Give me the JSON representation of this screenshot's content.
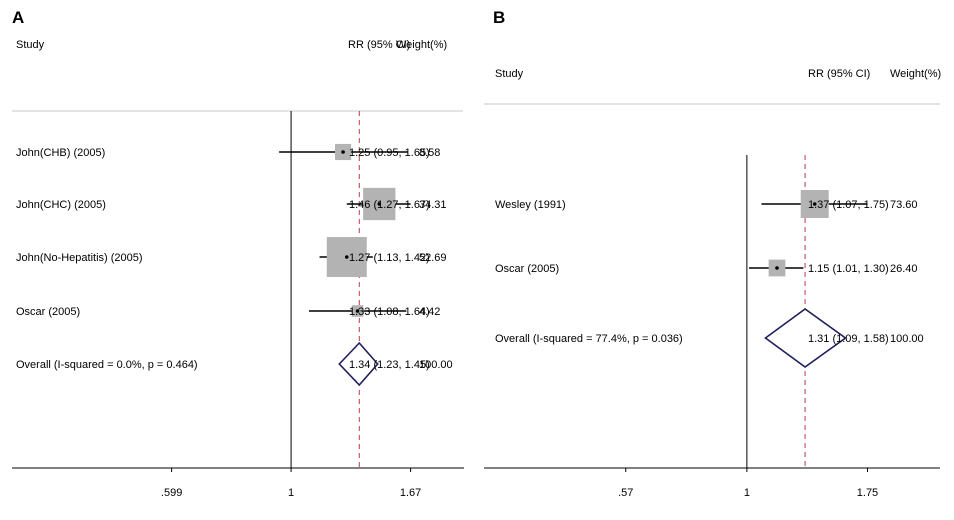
{
  "colors": {
    "box": "#b3b3b3",
    "diamond": "#1f1f5c",
    "ref_line": "#c0394b",
    "axis": "#000000",
    "separator": "#c8c8c8"
  },
  "chart_data": [
    {
      "type": "forest",
      "panel_label": "A",
      "headers": {
        "study": "Study",
        "rr": "RR (95% CI)",
        "weight": "Weight(%)"
      },
      "x_ticks": [
        {
          "value": 0.599,
          "label": ".599"
        },
        {
          "value": 1,
          "label": "1"
        },
        {
          "value": 1.67,
          "label": "1.67"
        }
      ],
      "xlim": [
        0.48,
        2.1
      ],
      "scale": "log",
      "null_line": 1,
      "overall_line": 1.34,
      "studies": [
        {
          "name": "John(CHB) (2005)",
          "rr": 1.25,
          "lo": 0.95,
          "hi": 1.65,
          "rr_text": "1.25 (0.95, 1.65)",
          "weight": 8.58,
          "weight_text": "8.58"
        },
        {
          "name": "John(CHC) (2005)",
          "rr": 1.46,
          "lo": 1.27,
          "hi": 1.67,
          "rr_text": "1.46 (1.27, 1.67)",
          "weight": 34.31,
          "weight_text": "34.31"
        },
        {
          "name": "John(No-Hepatitis) (2005)",
          "rr": 1.27,
          "lo": 1.13,
          "hi": 1.42,
          "rr_text": "1.27 (1.13, 1.42)",
          "weight": 52.69,
          "weight_text": "52.69"
        },
        {
          "name": "Oscar (2005)",
          "rr": 1.33,
          "lo": 1.08,
          "hi": 1.64,
          "rr_text": "1.33 (1.08, 1.64)",
          "weight": 4.42,
          "weight_text": "4.42"
        }
      ],
      "overall": {
        "name": "Overall  (I-squared = 0.0%, p = 0.464)",
        "rr": 1.34,
        "lo": 1.23,
        "hi": 1.45,
        "rr_text": "1.34 (1.23, 1.45)",
        "weight_text": "100.00"
      }
    },
    {
      "type": "forest",
      "panel_label": "B",
      "headers": {
        "study": "Study",
        "rr": "RR (95% CI)",
        "weight": "Weight(%)"
      },
      "x_ticks": [
        {
          "value": 0.57,
          "label": ".57"
        },
        {
          "value": 1,
          "label": "1"
        },
        {
          "value": 1.75,
          "label": "1.75"
        }
      ],
      "xlim": [
        0.43,
        2.45
      ],
      "scale": "log",
      "null_line": 1,
      "overall_line": 1.31,
      "studies": [
        {
          "name": "Wesley (1991)",
          "rr": 1.37,
          "lo": 1.07,
          "hi": 1.75,
          "rr_text": "1.37 (1.07, 1.75)",
          "weight": 73.6,
          "weight_text": "73.60"
        },
        {
          "name": "Oscar (2005)",
          "rr": 1.15,
          "lo": 1.01,
          "hi": 1.3,
          "rr_text": "1.15 (1.01, 1.30)",
          "weight": 26.4,
          "weight_text": "26.40"
        }
      ],
      "overall": {
        "name": "Overall  (I-squared = 77.4%, p = 0.036)",
        "rr": 1.31,
        "lo": 1.09,
        "hi": 1.58,
        "rr_text": "1.31 (1.09, 1.58)",
        "weight_text": "100.00"
      }
    }
  ]
}
